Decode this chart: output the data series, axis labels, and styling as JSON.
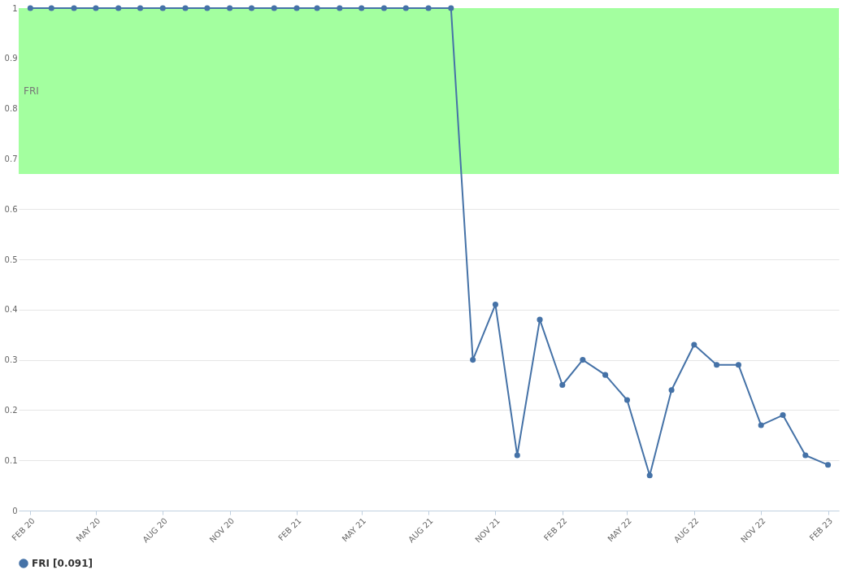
{
  "chart_data": {
    "type": "line",
    "x": [
      "2020-02",
      "2020-03",
      "2020-04",
      "2020-05",
      "2020-06",
      "2020-07",
      "2020-08",
      "2020-09",
      "2020-10",
      "2020-11",
      "2020-12",
      "2021-01",
      "2021-02",
      "2021-03",
      "2021-04",
      "2021-05",
      "2021-06",
      "2021-07",
      "2021-08",
      "2021-09",
      "2021-10",
      "2021-11",
      "2021-12",
      "2022-01",
      "2022-02",
      "2022-03",
      "2022-04",
      "2022-05",
      "2022-06",
      "2022-07",
      "2022-08",
      "2022-09",
      "2022-10",
      "2022-11",
      "2022-12",
      "2023-01",
      "2023-02"
    ],
    "series": [
      {
        "name": "FRI [0.091]",
        "color": "#4572a7",
        "values": [
          1,
          1,
          1,
          1,
          1,
          1,
          1,
          1,
          1,
          1,
          1,
          1,
          1,
          1,
          1,
          1,
          1,
          1,
          1,
          1,
          0.3,
          0.41,
          0.11,
          0.38,
          0.25,
          0.3,
          0.27,
          0.22,
          0.07,
          0.24,
          0.33,
          0.29,
          0.29,
          0.17,
          0.19,
          0.11,
          0.091
        ]
      }
    ],
    "xlim": [
      "2020-01-16",
      "2023-02-16"
    ],
    "xticks": [
      {
        "value": "2020-02",
        "label": "FEB 20"
      },
      {
        "value": "2020-05",
        "label": "MAY 20"
      },
      {
        "value": "2020-08",
        "label": "AUG 20"
      },
      {
        "value": "2020-11",
        "label": "NOV 20"
      },
      {
        "value": "2021-02",
        "label": "FEB 21"
      },
      {
        "value": "2021-05",
        "label": "MAY 21"
      },
      {
        "value": "2021-08",
        "label": "AUG 21"
      },
      {
        "value": "2021-11",
        "label": "NOV 21"
      },
      {
        "value": "2022-02",
        "label": "FEB 22"
      },
      {
        "value": "2022-05",
        "label": "MAY 22"
      },
      {
        "value": "2022-08",
        "label": "AUG 22"
      },
      {
        "value": "2022-11",
        "label": "NOV 22"
      },
      {
        "value": "2023-02",
        "label": "FEB 23"
      }
    ],
    "ylim": [
      0,
      1
    ],
    "yticks": [
      0,
      0.1,
      0.2,
      0.3,
      0.4,
      0.5,
      0.6,
      0.7,
      0.8,
      0.9,
      1
    ],
    "bands": [
      {
        "axis": "y",
        "from": 0.67,
        "to": 1,
        "label": "FRI",
        "color": "#a3ff9f"
      }
    ],
    "grid": "y",
    "legend": "bottom",
    "marker": "circle",
    "line_style": "solid"
  }
}
